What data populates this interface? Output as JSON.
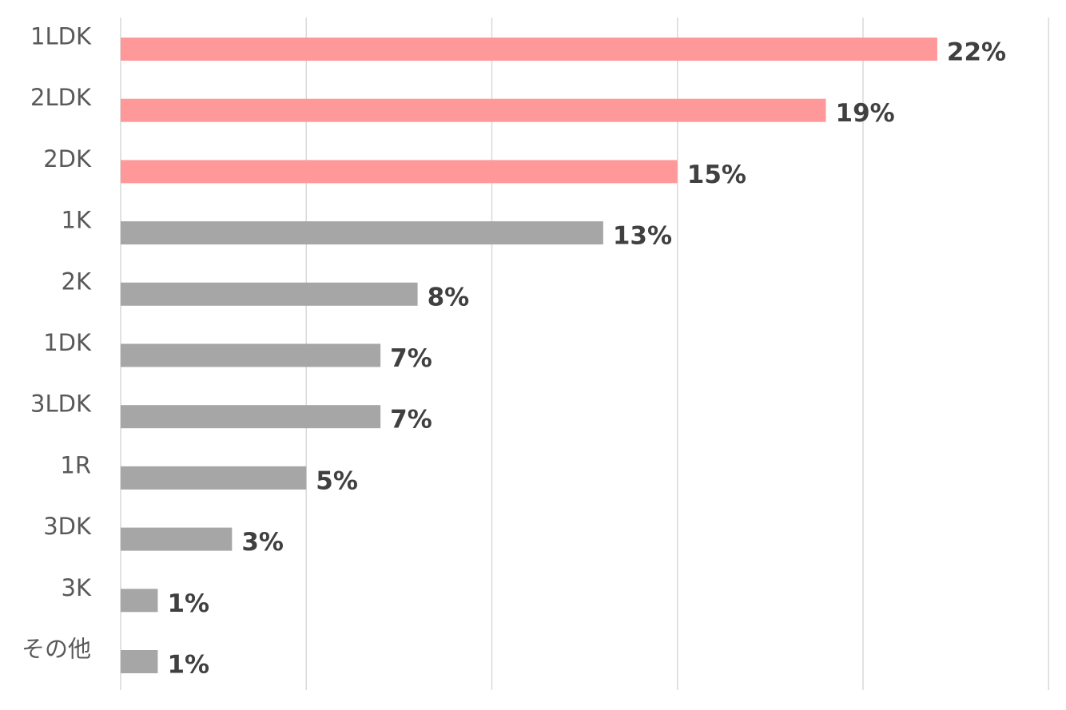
{
  "chart_data": {
    "type": "bar",
    "orientation": "horizontal",
    "categories": [
      "1LDK",
      "2LDK",
      "2DK",
      "1K",
      "2K",
      "1DK",
      "3LDK",
      "1R",
      "3DK",
      "3K",
      "その他"
    ],
    "values": [
      22,
      19,
      15,
      13,
      8,
      7,
      7,
      5,
      3,
      1,
      1
    ],
    "value_labels": [
      "22%",
      "19%",
      "15%",
      "13%",
      "8%",
      "7%",
      "7%",
      "5%",
      "3%",
      "1%",
      "1%"
    ],
    "highlighted": [
      true,
      true,
      true,
      false,
      false,
      false,
      false,
      false,
      false,
      false,
      false
    ],
    "xlim": [
      0,
      25
    ],
    "x_gridline_step": 5,
    "grid": true,
    "legend": "none",
    "title": "",
    "xlabel": "",
    "ylabel": "",
    "colors": {
      "highlight": "#ff9999",
      "default": "#a6a6a6",
      "gridline": "#d9d9d9",
      "category_text": "#595959",
      "value_text": "#404040"
    }
  }
}
